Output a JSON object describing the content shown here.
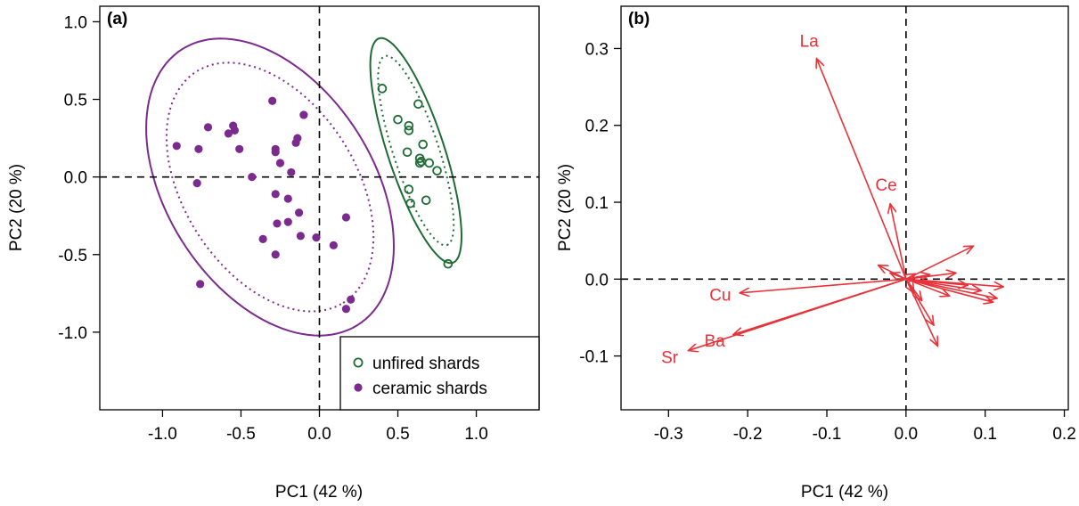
{
  "colors": {
    "ceramic": "#7B2A8E",
    "unfired": "#1E6B35",
    "arrows": "#E8323A",
    "axis": "#000000"
  },
  "chart_data": [
    {
      "type": "scatter",
      "panel_label": "(a)",
      "xlabel": "PC1 (42 %)",
      "ylabel": "PC2 (20 %)",
      "xlim": [
        -1.4,
        1.4
      ],
      "ylim": [
        -1.5,
        1.1
      ],
      "xticks": [
        "-1.0",
        "-0.5",
        "0.0",
        "0.5",
        "1.0"
      ],
      "yticks": [
        "-1.0",
        "-0.5",
        "0.0",
        "0.5",
        "1.0"
      ],
      "xtick_values": [
        -1.0,
        -0.5,
        0.0,
        0.5,
        1.0
      ],
      "ytick_values": [
        -1.0,
        -0.5,
        0.0,
        0.5,
        1.0
      ],
      "legend": {
        "placement": "bottom-right",
        "entries": [
          {
            "label": "unfired shards",
            "marker": "open-circle",
            "color": "#1E6B35"
          },
          {
            "label": "ceramic shards",
            "marker": "filled-circle",
            "color": "#7B2A8E"
          }
        ]
      },
      "series": [
        {
          "name": "unfired shards",
          "marker": "open-circle",
          "color": "#1E6B35",
          "points": [
            [
              0.4,
              0.57
            ],
            [
              0.63,
              0.47
            ],
            [
              0.5,
              0.37
            ],
            [
              0.57,
              0.33
            ],
            [
              0.57,
              0.3
            ],
            [
              0.66,
              0.21
            ],
            [
              0.56,
              0.16
            ],
            [
              0.64,
              0.12
            ],
            [
              0.65,
              0.1
            ],
            [
              0.64,
              0.09
            ],
            [
              0.7,
              0.09
            ],
            [
              0.75,
              0.04
            ],
            [
              0.57,
              -0.08
            ],
            [
              0.58,
              -0.17
            ],
            [
              0.68,
              -0.15
            ],
            [
              0.82,
              -0.56
            ]
          ]
        },
        {
          "name": "ceramic shards",
          "marker": "filled-circle",
          "color": "#7B2A8E",
          "points": [
            [
              -0.91,
              0.2
            ],
            [
              -0.77,
              0.18
            ],
            [
              -0.71,
              0.32
            ],
            [
              -0.58,
              0.28
            ],
            [
              -0.55,
              0.33
            ],
            [
              -0.54,
              0.3
            ],
            [
              -0.51,
              0.18
            ],
            [
              -0.3,
              0.49
            ],
            [
              -0.28,
              0.18
            ],
            [
              -0.28,
              0.16
            ],
            [
              -0.25,
              0.09
            ],
            [
              -0.15,
              0.22
            ],
            [
              -0.14,
              0.25
            ],
            [
              -0.1,
              0.4
            ],
            [
              -0.18,
              0.03
            ],
            [
              -0.43,
              0.0
            ],
            [
              -0.78,
              -0.04
            ],
            [
              -0.28,
              -0.11
            ],
            [
              -0.2,
              -0.14
            ],
            [
              -0.36,
              -0.4
            ],
            [
              -0.27,
              -0.3
            ],
            [
              -0.28,
              -0.5
            ],
            [
              -0.13,
              -0.23
            ],
            [
              -0.12,
              -0.38
            ],
            [
              -0.2,
              -0.29
            ],
            [
              -0.02,
              -0.39
            ],
            [
              0.09,
              -0.44
            ],
            [
              0.17,
              -0.26
            ],
            [
              0.2,
              -0.79
            ],
            [
              0.17,
              -0.85
            ],
            [
              -0.76,
              -0.69
            ]
          ]
        }
      ],
      "ellipses": [
        {
          "group": "unfired shards",
          "style": "solid",
          "cx": 0.615,
          "cy": 0.17,
          "rx": 0.76,
          "ry": 0.18,
          "angle_deg": -72
        },
        {
          "group": "unfired shards",
          "style": "dotted",
          "cx": 0.615,
          "cy": 0.17,
          "rx": 0.64,
          "ry": 0.145,
          "angle_deg": -72
        },
        {
          "group": "ceramic shards",
          "style": "solid",
          "cx": -0.315,
          "cy": -0.065,
          "rx": 1.05,
          "ry": 0.66,
          "angle_deg": -58
        },
        {
          "group": "ceramic shards",
          "style": "dotted",
          "cx": -0.315,
          "cy": -0.065,
          "rx": 0.88,
          "ry": 0.55,
          "angle_deg": -58
        }
      ]
    },
    {
      "type": "biplot-loadings",
      "panel_label": "(b)",
      "xlabel": "PC1 (42 %)",
      "ylabel": "PC2 (20 %)",
      "xlim": [
        -0.36,
        0.205
      ],
      "ylim": [
        -0.17,
        0.355
      ],
      "xticks": [
        "-0.3",
        "-0.2",
        "-0.1",
        "0.0",
        "0.1",
        "0.2"
      ],
      "yticks": [
        "-0.1",
        "0.0",
        "0.1",
        "0.2",
        "0.3"
      ],
      "xtick_values": [
        -0.3,
        -0.2,
        -0.1,
        0.0,
        0.1,
        0.2
      ],
      "ytick_values": [
        -0.1,
        0.0,
        0.1,
        0.2,
        0.3
      ],
      "labelled_vectors": [
        {
          "label": "La",
          "x": -0.113,
          "y": 0.287
        },
        {
          "label": "Ce",
          "x": -0.02,
          "y": 0.098
        },
        {
          "label": "Cu",
          "x": -0.21,
          "y": -0.018
        },
        {
          "label": "Ba",
          "x": -0.218,
          "y": -0.072
        },
        {
          "label": "Sr",
          "x": -0.275,
          "y": -0.093
        }
      ],
      "unlabelled_vectors": [
        [
          0.085,
          0.043
        ],
        [
          0.063,
          0.008
        ],
        [
          0.123,
          -0.01
        ],
        [
          0.115,
          -0.025
        ],
        [
          0.11,
          -0.03
        ],
        [
          0.095,
          -0.015
        ],
        [
          0.078,
          -0.008
        ],
        [
          0.04,
          -0.087
        ],
        [
          0.035,
          -0.06
        ],
        [
          0.02,
          -0.028
        ],
        [
          0.055,
          -0.022
        ],
        [
          0.03,
          0.006
        ],
        [
          0.012,
          0.007
        ],
        [
          -0.035,
          0.018
        ],
        [
          -0.02,
          0.008
        ],
        [
          0.01,
          -0.018
        ]
      ]
    }
  ]
}
